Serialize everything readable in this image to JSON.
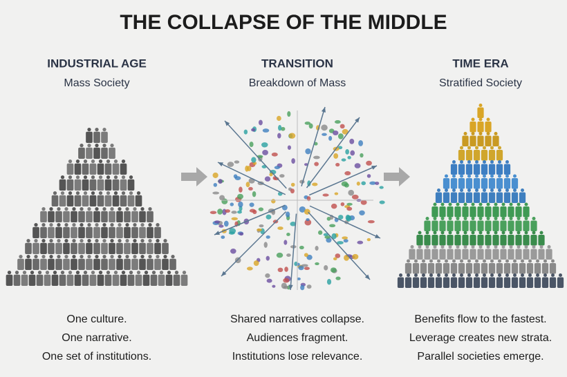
{
  "title": "THE COLLAPSE OF THE MIDDLE",
  "columns": [
    {
      "heading": "INDUSTRIAL AGE",
      "subheading": "Mass Society",
      "lines": [
        "One culture.",
        "One narrative.",
        "One set of institutions."
      ]
    },
    {
      "heading": "TRANSITION",
      "subheading": "Breakdown of Mass",
      "lines": [
        "Shared narratives collapse.",
        "Audiences fragment.",
        "Institutions lose relevance."
      ]
    },
    {
      "heading": "TIME ERA",
      "subheading": "Stratified Society",
      "lines": [
        "Benefits flow to the fastest.",
        "Leverage creates new strata.",
        "Parallel societies emerge."
      ]
    }
  ]
}
